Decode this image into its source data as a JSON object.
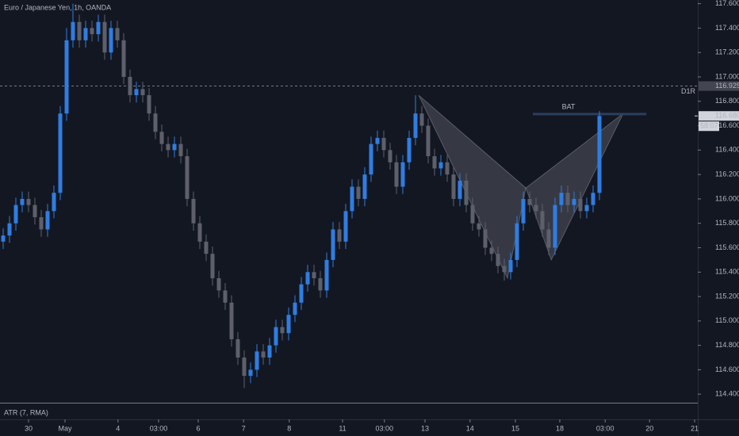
{
  "chart_data": {
    "type": "candlestick",
    "title": "Euro / Japanese Yen, 1h, OANDA",
    "indicator_label": "ATR (7, RMA)",
    "up_color": "#2f7de1",
    "down_color": "#5d606b",
    "x": [
      0,
      1,
      2,
      3,
      4,
      5,
      6,
      7,
      8,
      9,
      10,
      11,
      12,
      13,
      14,
      15,
      16,
      17,
      18,
      19,
      20,
      21,
      22,
      23,
      24,
      25,
      26,
      27,
      28,
      29,
      30,
      31,
      32,
      33,
      34,
      35,
      36,
      37,
      38,
      39,
      40,
      41,
      42,
      43,
      44,
      45,
      46,
      47,
      48,
      49,
      50,
      51,
      52,
      53,
      54,
      55,
      56,
      57,
      58,
      59,
      60,
      61,
      62,
      63,
      64,
      65,
      66,
      67,
      68,
      69,
      70,
      71,
      72,
      73,
      74,
      75,
      76,
      77,
      78,
      79,
      80,
      81,
      82,
      83,
      84,
      85,
      86,
      87,
      88,
      89,
      90,
      91,
      92,
      93,
      94
    ],
    "open": [
      115.65,
      115.7,
      115.8,
      115.95,
      116.0,
      115.95,
      115.85,
      115.75,
      115.9,
      116.05,
      116.7,
      117.3,
      117.45,
      117.3,
      117.4,
      117.35,
      117.45,
      117.2,
      117.4,
      117.3,
      117.0,
      116.85,
      116.9,
      116.85,
      116.7,
      116.55,
      116.45,
      116.4,
      116.45,
      116.35,
      116.0,
      115.8,
      115.65,
      115.55,
      115.35,
      115.25,
      115.15,
      114.85,
      114.7,
      114.55,
      114.6,
      114.75,
      114.7,
      114.8,
      114.95,
      114.9,
      115.05,
      115.15,
      115.3,
      115.4,
      115.35,
      115.25,
      115.5,
      115.75,
      115.65,
      115.9,
      116.1,
      116.0,
      116.2,
      116.45,
      116.5,
      116.4,
      116.3,
      116.1,
      116.3,
      116.5,
      116.7,
      116.6,
      116.35,
      116.25,
      116.3,
      116.2,
      116.0,
      116.15,
      115.95,
      115.8,
      115.75,
      115.6,
      115.55,
      115.45,
      115.4,
      115.5,
      115.8,
      116.0,
      115.95,
      115.9,
      115.75,
      115.6,
      115.95,
      116.05,
      115.95,
      116.0,
      115.9,
      115.95,
      116.05
    ],
    "high": [
      115.76,
      115.86,
      116.01,
      116.06,
      116.06,
      116.01,
      115.91,
      115.96,
      116.11,
      116.76,
      117.4,
      117.6,
      117.51,
      117.46,
      117.46,
      117.51,
      117.51,
      117.46,
      117.46,
      117.36,
      117.06,
      116.96,
      116.96,
      116.91,
      116.76,
      116.61,
      116.51,
      116.51,
      116.51,
      116.41,
      116.06,
      115.86,
      115.71,
      115.61,
      115.41,
      115.31,
      115.21,
      114.91,
      114.76,
      114.66,
      114.81,
      114.81,
      114.86,
      115.01,
      115.01,
      115.11,
      115.21,
      115.36,
      115.46,
      115.46,
      115.41,
      115.56,
      115.81,
      115.81,
      115.96,
      116.16,
      116.16,
      116.26,
      116.51,
      116.56,
      116.56,
      116.46,
      116.36,
      116.36,
      116.56,
      116.85,
      116.76,
      116.66,
      116.41,
      116.36,
      116.36,
      116.26,
      116.21,
      116.21,
      116.01,
      115.86,
      115.81,
      115.66,
      115.61,
      115.51,
      115.56,
      115.86,
      116.06,
      116.06,
      116.01,
      115.96,
      115.81,
      116.01,
      116.11,
      116.11,
      116.06,
      116.06,
      116.01,
      116.11,
      116.72
    ],
    "low": [
      115.59,
      115.64,
      115.74,
      115.89,
      115.89,
      115.79,
      115.69,
      115.69,
      115.84,
      115.99,
      116.64,
      117.24,
      117.24,
      117.24,
      117.29,
      117.29,
      117.14,
      117.14,
      117.24,
      116.94,
      116.79,
      116.79,
      116.79,
      116.64,
      116.49,
      116.39,
      116.34,
      116.34,
      116.29,
      115.94,
      115.74,
      115.59,
      115.49,
      115.29,
      115.19,
      115.09,
      114.79,
      114.64,
      114.45,
      114.49,
      114.54,
      114.64,
      114.64,
      114.74,
      114.84,
      114.84,
      114.99,
      115.09,
      115.24,
      115.29,
      115.19,
      115.19,
      115.44,
      115.59,
      115.59,
      115.84,
      115.94,
      115.94,
      116.14,
      116.39,
      116.34,
      116.24,
      116.04,
      116.04,
      116.24,
      116.44,
      116.54,
      116.29,
      116.19,
      116.19,
      116.14,
      115.94,
      115.94,
      115.89,
      115.74,
      115.69,
      115.54,
      115.49,
      115.39,
      115.33,
      115.34,
      115.44,
      115.74,
      115.89,
      115.84,
      115.69,
      115.54,
      115.54,
      115.89,
      115.89,
      115.89,
      115.84,
      115.84,
      115.89,
      115.99
    ],
    "close": [
      115.7,
      115.8,
      115.95,
      116.0,
      115.95,
      115.85,
      115.75,
      115.9,
      116.05,
      116.7,
      117.3,
      117.45,
      117.3,
      117.4,
      117.35,
      117.45,
      117.2,
      117.4,
      117.3,
      117.0,
      116.85,
      116.9,
      116.85,
      116.7,
      116.55,
      116.45,
      116.4,
      116.45,
      116.35,
      116.0,
      115.8,
      115.65,
      115.55,
      115.35,
      115.25,
      115.15,
      114.85,
      114.7,
      114.55,
      114.6,
      114.75,
      114.7,
      114.8,
      114.95,
      114.9,
      115.05,
      115.15,
      115.3,
      115.4,
      115.35,
      115.25,
      115.5,
      115.75,
      115.65,
      115.9,
      116.1,
      116.0,
      116.2,
      116.45,
      116.5,
      116.4,
      116.3,
      116.1,
      116.3,
      116.5,
      116.7,
      116.6,
      116.35,
      116.25,
      116.3,
      116.2,
      116.0,
      116.15,
      115.95,
      115.8,
      115.75,
      115.6,
      115.55,
      115.45,
      115.4,
      115.5,
      115.8,
      116.0,
      115.95,
      115.9,
      115.75,
      115.6,
      115.95,
      116.05,
      115.95,
      116.0,
      115.9,
      115.95,
      116.05,
      116.68
    ],
    "xlim": [
      -0.5,
      109.5
    ],
    "xticks": [
      {
        "value": 4,
        "label": "30"
      },
      {
        "value": 9.75,
        "label": "May"
      },
      {
        "value": 18.1,
        "label": "4"
      },
      {
        "value": 24.5,
        "label": "03:00"
      },
      {
        "value": 30.75,
        "label": "6"
      },
      {
        "value": 37.9,
        "label": "7"
      },
      {
        "value": 45.1,
        "label": "8"
      },
      {
        "value": 53.5,
        "label": "11"
      },
      {
        "value": 60.1,
        "label": "03:00"
      },
      {
        "value": 66.5,
        "label": "13"
      },
      {
        "value": 73.6,
        "label": "14"
      },
      {
        "value": 80.75,
        "label": "15"
      },
      {
        "value": 87.75,
        "label": "18"
      },
      {
        "value": 94.9,
        "label": "03:00"
      },
      {
        "value": 101.9,
        "label": "20"
      },
      {
        "value": 109,
        "label": "21"
      }
    ],
    "ylim": [
      114.33,
      117.63
    ],
    "yticks": [
      {
        "value": 114.4,
        "label": "114.400"
      },
      {
        "value": 114.6,
        "label": "114.600"
      },
      {
        "value": 114.8,
        "label": "114.800"
      },
      {
        "value": 115.0,
        "label": "115.000"
      },
      {
        "value": 115.2,
        "label": "115.200"
      },
      {
        "value": 115.4,
        "label": "115.400"
      },
      {
        "value": 115.6,
        "label": "115.600"
      },
      {
        "value": 115.8,
        "label": "115.800"
      },
      {
        "value": 116.0,
        "label": "116.000"
      },
      {
        "value": 116.2,
        "label": "116.200"
      },
      {
        "value": 116.4,
        "label": "116.400"
      },
      {
        "value": 116.6,
        "label": "116.600"
      },
      {
        "value": 116.8,
        "label": "116.800"
      },
      {
        "value": 117.0,
        "label": "117.000"
      },
      {
        "value": 117.2,
        "label": "117.200"
      },
      {
        "value": 117.4,
        "label": "117.400"
      },
      {
        "value": 117.6,
        "label": "117.600"
      }
    ],
    "level": {
      "value": 116.925,
      "label": "116.925",
      "name": "D1R"
    },
    "last_price": {
      "value": 116.68,
      "label": "116.680"
    },
    "countdown": "58:07",
    "pattern": {
      "label": "BAT",
      "x": [
        65.5,
        79.5,
        82.4,
        86.4,
        97.75
      ],
      "y": [
        116.85,
        115.35,
        116.09,
        115.5,
        116.7
      ],
      "line_value": 116.695,
      "line_x": [
        83.5,
        101.4
      ]
    }
  }
}
